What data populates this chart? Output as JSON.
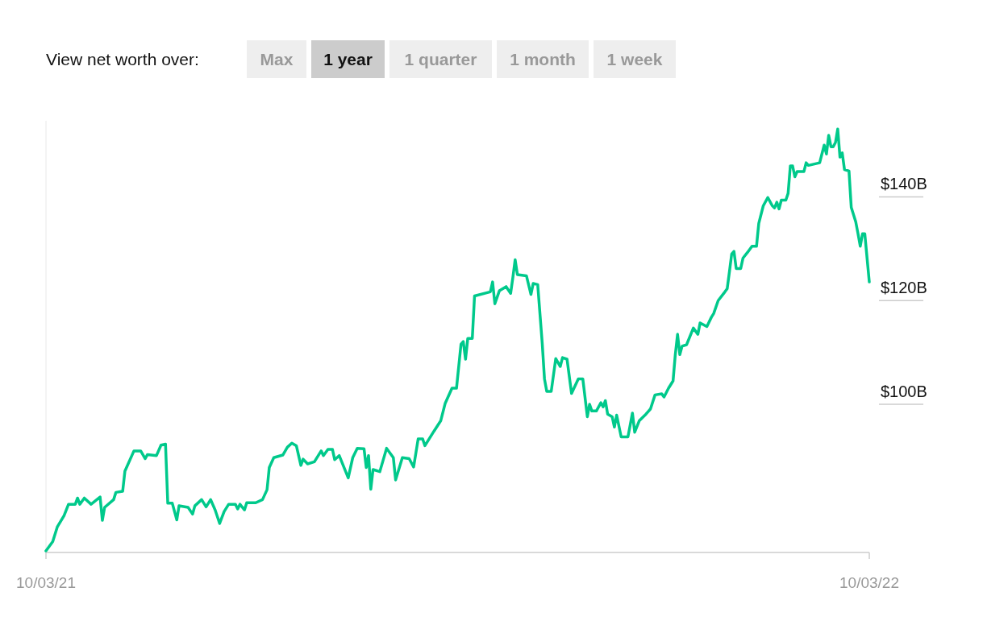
{
  "chart_data": {
    "type": "line",
    "annotations": [
      "View net worth over:",
      "Max",
      "1 year",
      "1 quarter",
      "1 month",
      "1 week"
    ],
    "x": [
      "2021-10-03",
      "2021-10-06",
      "2021-10-08",
      "2021-10-11",
      "2021-10-13",
      "2021-10-16",
      "2021-10-17",
      "2021-10-18",
      "2021-10-20",
      "2021-10-23",
      "2021-10-27",
      "2021-10-28",
      "2021-10-29",
      "2021-11-02",
      "2021-11-03",
      "2021-11-06",
      "2021-11-07",
      "2021-11-11",
      "2021-11-14",
      "2021-11-16",
      "2021-11-17",
      "2021-11-21",
      "2021-11-23",
      "2021-11-25",
      "2021-11-26",
      "2021-11-28",
      "2021-11-30",
      "2021-12-01",
      "2021-12-05",
      "2021-12-07",
      "2021-12-08",
      "2021-12-11",
      "2021-12-13",
      "2021-12-15",
      "2021-12-17",
      "2021-12-19",
      "2021-12-21",
      "2021-12-23",
      "2021-12-26",
      "2021-12-27",
      "2021-12-28",
      "2021-12-30",
      "2021-12-31",
      "2022-01-04",
      "2022-01-07",
      "2022-01-09",
      "2022-01-10",
      "2022-01-12",
      "2022-01-16",
      "2022-01-18",
      "2022-01-20",
      "2022-01-22",
      "2022-01-24",
      "2022-01-25",
      "2022-01-27",
      "2022-01-30",
      "2022-02-02",
      "2022-02-03",
      "2022-02-05",
      "2022-02-07",
      "2022-02-08",
      "2022-02-10",
      "2022-02-14",
      "2022-02-16",
      "2022-02-18",
      "2022-02-21",
      "2022-02-22",
      "2022-02-23",
      "2022-02-24",
      "2022-02-25",
      "2022-02-28",
      "2022-03-03",
      "2022-03-06",
      "2022-03-07",
      "2022-03-10",
      "2022-03-13",
      "2022-03-15",
      "2022-03-17",
      "2022-03-19",
      "2022-03-20",
      "2022-03-24",
      "2022-03-27",
      "2022-03-29",
      "2022-04-01",
      "2022-04-03",
      "2022-04-05",
      "2022-04-06",
      "2022-04-07",
      "2022-04-08",
      "2022-04-10",
      "2022-04-11",
      "2022-04-18",
      "2022-04-19",
      "2022-04-20",
      "2022-04-22",
      "2022-04-25",
      "2022-04-27",
      "2022-04-28",
      "2022-04-29",
      "2022-04-30",
      "2022-05-04",
      "2022-05-06",
      "2022-05-07",
      "2022-05-09",
      "2022-05-11",
      "2022-05-12",
      "2022-05-13",
      "2022-05-15",
      "2022-05-17",
      "2022-05-19",
      "2022-05-20",
      "2022-05-22",
      "2022-05-24",
      "2022-05-27",
      "2022-05-29",
      "2022-05-31",
      "2022-06-01",
      "2022-06-02",
      "2022-06-04",
      "2022-06-06",
      "2022-06-07",
      "2022-06-08",
      "2022-06-09",
      "2022-06-11",
      "2022-06-12",
      "2022-06-13",
      "2022-06-15",
      "2022-06-18",
      "2022-06-20",
      "2022-06-21",
      "2022-06-23",
      "2022-06-26",
      "2022-06-28",
      "2022-06-30",
      "2022-07-03",
      "2022-07-04",
      "2022-07-06",
      "2022-07-08",
      "2022-07-09",
      "2022-07-10",
      "2022-07-11",
      "2022-07-12",
      "2022-07-14",
      "2022-07-17",
      "2022-07-19",
      "2022-07-20",
      "2022-07-23",
      "2022-07-25",
      "2022-07-26",
      "2022-07-28",
      "2022-07-31",
      "2022-08-01",
      "2022-08-02",
      "2022-08-03",
      "2022-08-04",
      "2022-08-05",
      "2022-08-07",
      "2022-08-08",
      "2022-08-10",
      "2022-08-12",
      "2022-08-14",
      "2022-08-15",
      "2022-08-17",
      "2022-08-19",
      "2022-08-21",
      "2022-08-22",
      "2022-08-23",
      "2022-08-24",
      "2022-08-25",
      "2022-08-27",
      "2022-08-28",
      "2022-08-29",
      "2022-08-30",
      "2022-08-31",
      "2022-09-01",
      "2022-09-04",
      "2022-09-05",
      "2022-09-06",
      "2022-09-11",
      "2022-09-13",
      "2022-09-14",
      "2022-09-15",
      "2022-09-16",
      "2022-09-17",
      "2022-09-18",
      "2022-09-19",
      "2022-09-20",
      "2022-09-21",
      "2022-09-22",
      "2022-09-24",
      "2022-09-25",
      "2022-09-27",
      "2022-09-28",
      "2022-09-29",
      "2022-09-30",
      "2022-10-01",
      "2022-10-03"
    ],
    "series": [
      {
        "color": "#00c98b",
        "values": [
          69.2,
          71.0,
          73.8,
          76.0,
          78.2,
          78.2,
          79.4,
          78.2,
          79.4,
          78.2,
          79.6,
          75.1,
          77.6,
          79.1,
          80.5,
          80.7,
          84.6,
          88.5,
          88.5,
          87.0,
          87.8,
          87.6,
          89.6,
          89.8,
          78.4,
          78.4,
          75.2,
          77.9,
          77.6,
          76.3,
          77.9,
          79.1,
          77.7,
          79.1,
          77.1,
          74.5,
          76.8,
          78.2,
          78.2,
          77.3,
          78.2,
          77.1,
          78.5,
          78.5,
          79.1,
          81.0,
          85.3,
          87.2,
          87.7,
          89.2,
          90.0,
          89.5,
          85.7,
          86.9,
          86.0,
          86.4,
          88.5,
          87.6,
          88.8,
          88.8,
          86.8,
          87.6,
          83.3,
          87.2,
          89.0,
          88.9,
          85.3,
          87.6,
          81.1,
          84.9,
          84.5,
          89.0,
          87.2,
          82.9,
          87.2,
          87.0,
          85.4,
          90.8,
          90.8,
          89.5,
          92.3,
          94.3,
          97.7,
          100.6,
          100.6,
          109.1,
          109.6,
          106.2,
          110.2,
          110.2,
          118.4,
          119.2,
          121.1,
          116.9,
          119.4,
          120.2,
          118.9,
          122.0,
          125.4,
          122.5,
          122.3,
          118.7,
          120.8,
          120.6,
          109.3,
          102.4,
          100.0,
          100.0,
          106.3,
          104.8,
          106.5,
          106.2,
          99.6,
          102.4,
          102.4,
          95.1,
          97.5,
          96.2,
          96.2,
          97.8,
          97.0,
          98.2,
          95.6,
          95.1,
          93.1,
          95.4,
          91.2,
          91.2,
          95.8,
          92.1,
          94.3,
          95.6,
          96.6,
          99.3,
          99.5,
          98.9,
          100.6,
          102.0,
          107.1,
          111.0,
          107.1,
          108.7,
          109.0,
          112.2,
          111.0,
          113.2,
          112.5,
          114.3,
          115.0,
          117.5,
          119.2,
          119.8,
          123.1,
          126.5,
          127.0,
          123.7,
          123.7,
          125.7,
          126.8,
          128.0,
          128.0,
          132.4,
          135.8,
          137.4,
          135.8,
          135.4,
          136.5,
          135.2,
          136.9,
          136.9,
          138.2,
          143.5,
          143.5,
          141.4,
          142.4,
          142.4,
          144.1,
          143.6,
          144.1,
          147.5,
          145.8,
          149.4,
          147.2,
          147.2,
          148.0,
          150.6,
          145.2,
          146.0,
          142.8,
          142.5,
          135.5,
          132.7,
          130.4,
          128.0,
          130.4,
          130.4,
          121.1
        ]
      }
    ],
    "xlim": [
      "2021-10-03",
      "2022-10-03"
    ],
    "xticks": [
      {
        "value": "2021-10-03",
        "label": "10/03/21"
      },
      {
        "value": "2022-10-03",
        "label": "10/03/22"
      }
    ],
    "ylim": [
      68.9,
      152.2
    ],
    "yticks": [
      {
        "value": 100,
        "label": "$100B"
      },
      {
        "value": 120,
        "label": "$120B"
      },
      {
        "value": 140,
        "label": "$140B"
      }
    ],
    "line_style": "solid",
    "marker": "none"
  }
}
